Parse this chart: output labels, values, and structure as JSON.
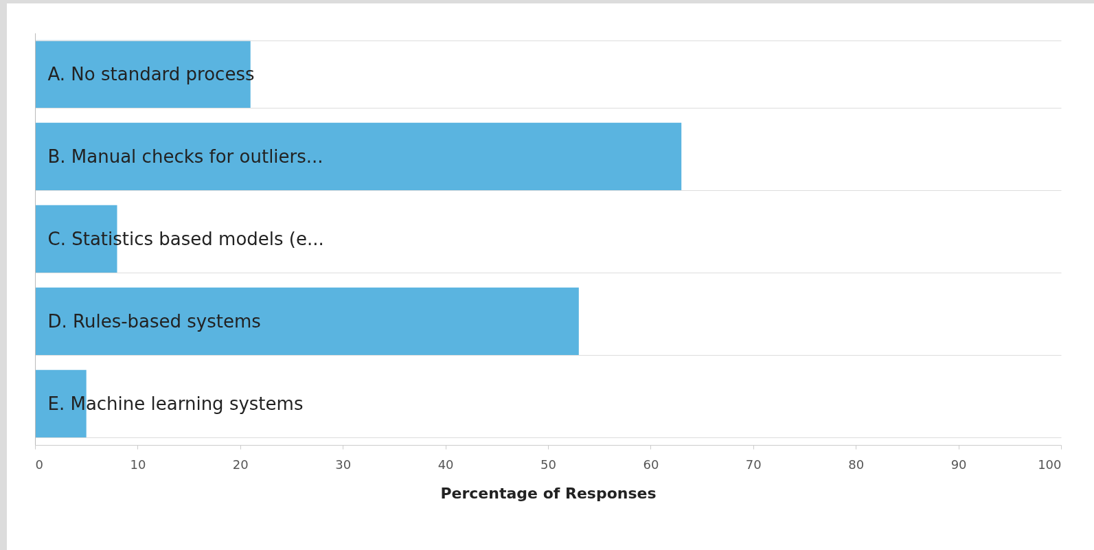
{
  "chart_data": {
    "type": "bar",
    "orientation": "horizontal",
    "xlabel": "Percentage of Responses",
    "categories": [
      "A. No standard process",
      "B. Manual checks for outliers...",
      "C. Statistics based models (e...",
      "D. Rules-based systems",
      "E. Machine learning systems"
    ],
    "values": [
      21,
      63,
      8,
      53,
      5
    ],
    "color": "#5ab4e0",
    "xlim": [
      0,
      100
    ],
    "xticks": [
      0,
      10,
      20,
      30,
      40,
      50,
      60,
      70,
      80,
      90,
      100
    ],
    "grid": "y"
  }
}
